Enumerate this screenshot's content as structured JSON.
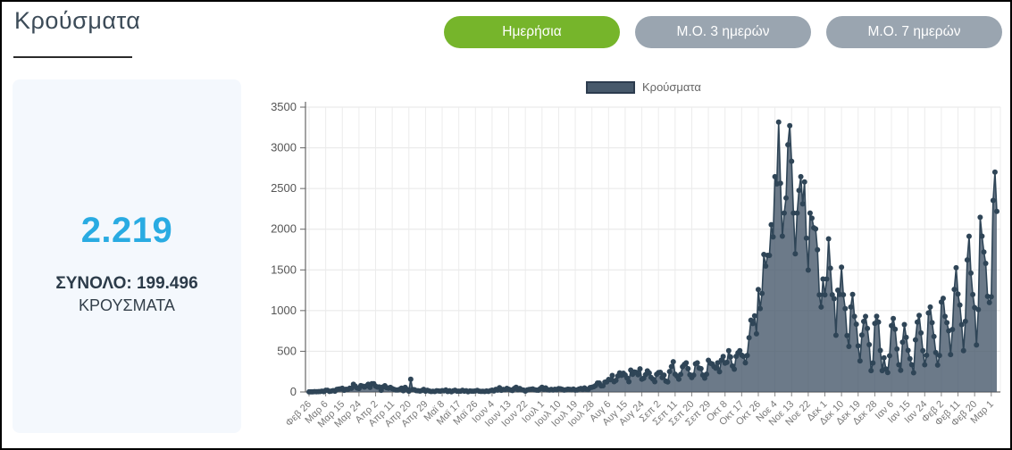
{
  "page": {
    "title": "Κρούσματα"
  },
  "toolbar": {
    "buttons": [
      {
        "label": "Ημερήσια",
        "active": true
      },
      {
        "label": "Μ.Ο. 3 ημερών",
        "active": false
      },
      {
        "label": "Μ.Ο. 7 ημερών",
        "active": false
      }
    ]
  },
  "summary": {
    "current_value": "2.219",
    "total_label": "ΣΥΝΟΛΟ: 199.496",
    "unit_label": "ΚΡΟΥΣΜΑΤΑ"
  },
  "colors": {
    "accent_green": "#76b52b",
    "inactive_gray": "#9aa5b0",
    "value_cyan": "#29abe2",
    "card_bg": "#f4f8fd",
    "series_fill": "#47596b",
    "series_stroke": "#2f4557",
    "grid": "#e6e6e6",
    "axis": "#666666",
    "y_label": "#555555",
    "x_label": "#787878"
  },
  "chart_data": {
    "type": "area",
    "legend": "Κρούσματα",
    "title": "",
    "xlabel": "",
    "ylabel": "",
    "ylim": [
      0,
      3500
    ],
    "y_ticks": [
      0,
      500,
      1000,
      1500,
      2000,
      2500,
      3000,
      3500
    ],
    "grid": true,
    "legend_position": "top-center",
    "tick_every_days": 9,
    "x_tick_labels": [
      "Φεβ 26",
      "Μαρ 6",
      "Μαρ 15",
      "Μαρ 24",
      "Απρ 2",
      "Απρ 11",
      "Απρ 20",
      "Απρ 29",
      "Μαϊ 8",
      "Μαϊ 17",
      "Μαϊ 26",
      "Ιουν 4",
      "Ιουν 13",
      "Ιουν 22",
      "Ιουλ 1",
      "Ιουλ 10",
      "Ιουλ 19",
      "Ιουλ 28",
      "Αυγ 6",
      "Αυγ 15",
      "Αυγ 24",
      "Σεπ 2",
      "Σεπ 11",
      "Σεπ 20",
      "Σεπ 29",
      "Οκτ 8",
      "Οκτ 17",
      "Οκτ 26",
      "Νοε 4",
      "Νοε 13",
      "Νοε 22",
      "Δεκ 1",
      "Δεκ 10",
      "Δεκ 19",
      "Δεκ 28",
      "Ιαν 6",
      "Ιαν 15",
      "Ιαν 24",
      "Φεβ 2",
      "Φεβ 11",
      "Φεβ 20",
      "Μαρ 1"
    ],
    "series": [
      {
        "name": "Κρούσματα",
        "values": [
          1,
          2,
          1,
          4,
          3,
          4,
          5,
          9,
          4,
          21,
          21,
          7,
          11,
          16,
          10,
          31,
          35,
          38,
          45,
          21,
          33,
          31,
          46,
          45,
          94,
          71,
          48,
          43,
          78,
          71,
          60,
          74,
          95,
          56,
          102,
          102,
          71,
          60,
          62,
          20,
          62,
          77,
          52,
          47,
          56,
          41,
          31,
          25,
          25,
          32,
          47,
          15,
          56,
          32,
          10,
          156,
          30,
          28,
          16,
          15,
          11,
          18,
          31,
          10,
          21,
          12,
          6,
          8,
          6,
          15,
          13,
          10,
          17,
          14,
          24,
          6,
          15,
          3,
          14,
          21,
          10,
          9,
          10,
          21,
          10,
          15,
          3,
          12,
          9,
          9,
          12,
          19,
          10,
          7,
          8,
          5,
          12,
          7,
          15,
          22,
          12,
          31,
          23,
          52,
          20,
          32,
          29,
          44,
          33,
          25,
          18,
          43,
          57,
          28,
          42,
          27,
          23,
          11,
          24,
          30,
          33,
          37,
          27,
          23,
          22,
          40,
          57,
          33,
          50,
          28,
          24,
          31,
          25,
          33,
          28,
          41,
          39,
          31,
          23,
          27,
          34,
          31,
          29,
          35,
          23,
          25,
          36,
          43,
          30,
          49,
          33,
          30,
          53,
          58,
          65,
          78,
          110,
          110,
          75,
          77,
          121,
          124,
          153,
          151,
          203,
          126,
          143,
          196,
          235,
          204,
          230,
          208,
          172,
          126,
          269,
          217,
          246,
          240,
          211,
          284,
          157,
          168,
          212,
          259,
          233,
          179,
          157,
          126,
          217,
          238,
          241,
          177,
          207,
          133,
          123,
          251,
          312,
          372,
          218,
          195,
          157,
          216,
          310,
          339,
          358,
          286,
          211,
          177,
          207,
          346,
          358,
          293,
          286,
          207,
          170,
          218,
          390,
          354,
          346,
          312,
          292,
          358,
          248,
          391,
          436,
          354,
          364,
          508,
          430,
          319,
          280,
          438,
          482,
          508,
          452,
          438,
          358,
          448,
          667,
          882,
          841,
          935,
          715,
          1259,
          1024,
          1211,
          1690,
          1547,
          1678,
          1678,
          2056,
          1905,
          2646,
          2556,
          3316,
          2565,
          1914,
          2199,
          2383,
          3038,
          3272,
          2835,
          2198,
          1698,
          2198,
          2477,
          2646,
          2311,
          2581,
          1890,
          1498,
          2198,
          2135,
          2018,
          2004,
          1747,
          1193,
          1044,
          1388,
          1193,
          1388,
          1882,
          1521,
          1194,
          1147,
          697,
          1251,
          1199,
          1533,
          1194,
          1024,
          693,
          559,
          1044,
          1199,
          928,
          833,
          567,
          381,
          699,
          867,
          928,
          780,
          582,
          262,
          357,
          842,
          930,
          858,
          510,
          262,
          420,
          282,
          238,
          445,
          815,
          902,
          771,
          528,
          334,
          266,
          612,
          828,
          671,
          511,
          409,
          334,
          236,
          640,
          858,
          941,
          726,
          508,
          334,
          451,
          971,
          1044,
          852,
          682,
          484,
          330,
          448,
          1106,
          1151,
          928,
          852,
          751,
          460,
          768,
          1261,
          1526,
          1203,
          1068,
          827,
          507,
          868,
          1623,
          1913,
          1460,
          1197,
          1037,
          578,
          1012,
          2147,
          1915,
          1720,
          1580,
          1176,
          1098,
          1170,
          2353,
          2702,
          2219
        ]
      }
    ]
  }
}
